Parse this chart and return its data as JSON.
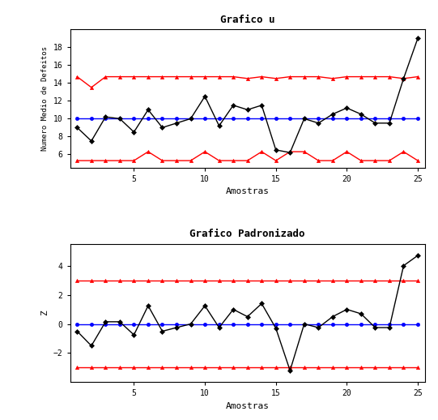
{
  "title1": "Grafico u",
  "title2": "Grafico Padronizado",
  "xlabel": "Amostras",
  "ylabel1": "Numero Medio de Defeitos",
  "ylabel2": "Z",
  "n": 25,
  "cl1": 10.0,
  "cl2": 0.0,
  "ucl2": 3.0,
  "lcl2": -3.0,
  "black_data1": [
    9.0,
    7.5,
    10.2,
    10.0,
    8.5,
    11.0,
    9.0,
    9.5,
    10.0,
    12.5,
    9.2,
    11.5,
    11.0,
    11.5,
    6.5,
    6.2,
    10.0,
    9.5,
    10.5,
    11.2,
    10.5,
    9.5,
    9.5,
    14.5,
    19.0
  ],
  "black_data2": [
    -0.5,
    -1.5,
    0.15,
    0.15,
    -0.75,
    1.25,
    -0.5,
    -0.25,
    0.0,
    1.25,
    -0.25,
    1.0,
    0.5,
    1.4,
    -0.3,
    -3.2,
    0.0,
    -0.25,
    0.5,
    1.0,
    0.7,
    -0.25,
    -0.25,
    4.0,
    4.7
  ],
  "ucl_zigzag": [
    14.7,
    13.5,
    14.7,
    14.7,
    14.7,
    14.7,
    14.7,
    14.7,
    14.7,
    14.7,
    14.7,
    14.7,
    14.5,
    14.7,
    14.5,
    14.7,
    14.7,
    14.7,
    14.5,
    14.7,
    14.7,
    14.7,
    14.7,
    14.5,
    14.7
  ],
  "lcl_zigzag": [
    5.3,
    5.3,
    5.3,
    5.3,
    5.3,
    6.3,
    5.3,
    5.3,
    5.3,
    6.3,
    5.3,
    5.3,
    5.3,
    6.3,
    5.3,
    6.3,
    6.3,
    5.3,
    5.3,
    6.3,
    5.3,
    5.3,
    5.3,
    6.3,
    5.3
  ],
  "ylim1": [
    4.5,
    20
  ],
  "ylim2": [
    -4.0,
    5.5
  ],
  "yticks1": [
    6,
    8,
    10,
    12,
    14,
    16,
    18
  ],
  "yticks2": [
    -2,
    0,
    2,
    4
  ],
  "xticks": [
    5,
    10,
    15,
    20,
    25
  ],
  "line_color_black": "#000000",
  "line_color_blue": "#0000FF",
  "line_color_red": "#FF0000",
  "marker_black": "D",
  "marker_blue": "o",
  "marker_red": "^",
  "bg_color": "#FFFFFF",
  "font_family": "monospace"
}
